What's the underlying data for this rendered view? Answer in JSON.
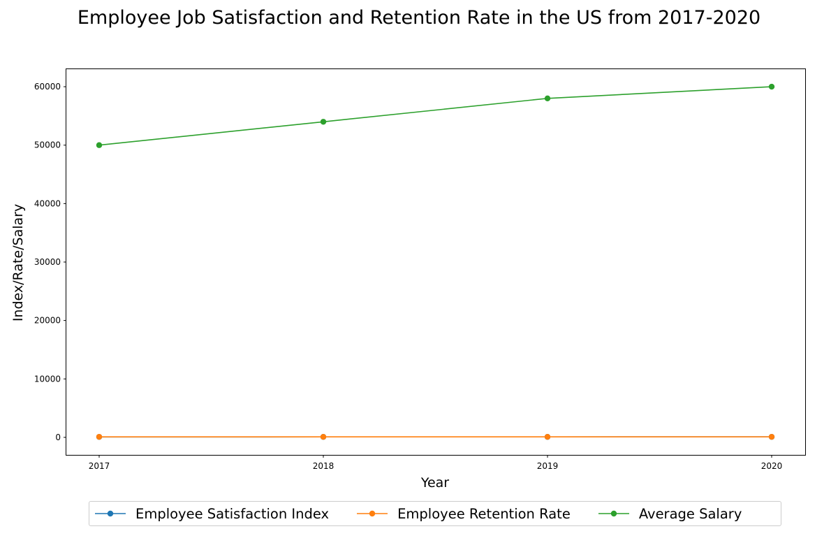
{
  "chart_data": {
    "type": "line",
    "title": "Employee Job Satisfaction and Retention Rate in the US from 2017-2020",
    "xlabel": "Year",
    "ylabel": "Index/Rate/Salary",
    "categories": [
      "2017",
      "2018",
      "2019",
      "2020"
    ],
    "yticks": [
      0,
      10000,
      20000,
      30000,
      40000,
      50000,
      60000
    ],
    "ylim": [
      -3000,
      63000
    ],
    "grid": false,
    "legend_position": "bottom-center",
    "series": [
      {
        "name": "Employee Satisfaction Index",
        "color": "#1f77b4",
        "marker": "circle",
        "values": [
          75,
          78,
          80,
          82
        ]
      },
      {
        "name": "Employee Retention Rate",
        "color": "#ff7f0e",
        "marker": "circle",
        "values": [
          90,
          85,
          88,
          92
        ]
      },
      {
        "name": "Average Salary",
        "color": "#2ca02c",
        "marker": "circle",
        "values": [
          50000,
          54000,
          58000,
          60000
        ]
      }
    ]
  }
}
